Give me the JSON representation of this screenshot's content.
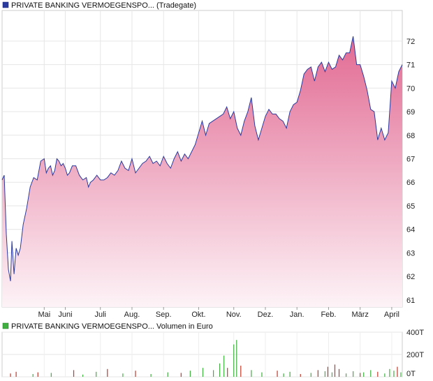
{
  "chart_data": [
    {
      "type": "area",
      "legend": "PRIVATE BANKING VERMOEGENSPO... (Tradegate)",
      "series_color": "#2b3a9e",
      "fill_top_color": "#e26a93",
      "fill_bottom_color": "#fdf3f7",
      "ylim": [
        60.7,
        73.3
      ],
      "yticks": [
        "61",
        "62",
        "63",
        "64",
        "65",
        "66",
        "67",
        "68",
        "69",
        "70",
        "71",
        "72"
      ],
      "ytick_values": [
        61,
        62,
        63,
        64,
        65,
        66,
        67,
        68,
        69,
        70,
        71,
        72
      ],
      "xlim": [
        0,
        57
      ],
      "xticks": [
        "Mai",
        "Juni",
        "Juli",
        "Aug.",
        "Sep.",
        "Okt.",
        "Nov.",
        "Dez.",
        "Jan.",
        "Feb.",
        "März",
        "April"
      ],
      "xtick_positions": [
        6,
        9,
        14,
        18.5,
        23,
        28,
        33,
        37.5,
        42,
        46.5,
        51,
        55.5
      ],
      "grid": true,
      "x": [
        0,
        0.3,
        0.6,
        0.9,
        1.2,
        1.4,
        1.7,
        2,
        2.3,
        2.6,
        3,
        3.5,
        4,
        4.5,
        5,
        5.5,
        6,
        6.3,
        6.6,
        6.9,
        7.2,
        7.5,
        7.8,
        8.1,
        8.4,
        8.7,
        9,
        9.3,
        9.6,
        10,
        10.5,
        11,
        11.5,
        12,
        12.3,
        12.6,
        13,
        13.5,
        14,
        14.5,
        15,
        15.5,
        16,
        16.5,
        17,
        17.5,
        18,
        18.5,
        19,
        19.5,
        20,
        20.5,
        21,
        21.5,
        22,
        22.5,
        23,
        23.5,
        24,
        24.5,
        25,
        25.5,
        26,
        26.5,
        27,
        27.5,
        28,
        28.5,
        29,
        29.5,
        30,
        30.5,
        31,
        31.5,
        32,
        32.5,
        33,
        33.5,
        34,
        34.5,
        35,
        35.5,
        36,
        36.5,
        37,
        37.5,
        38,
        38.5,
        39,
        39.5,
        40,
        40.5,
        41,
        41.5,
        42,
        42.5,
        43,
        43.5,
        44,
        44.5,
        45,
        45.5,
        46,
        46.5,
        47,
        47.5,
        48,
        48.5,
        49,
        49.5,
        50,
        50.5,
        51,
        51.5,
        52,
        52.5,
        53,
        53.5,
        54,
        54.5,
        55,
        55.5,
        56,
        56.5,
        57
      ],
      "values": [
        66.1,
        66.3,
        63.8,
        62.3,
        61.8,
        63.5,
        62.1,
        63.2,
        62.9,
        63.2,
        64.2,
        64.9,
        65.8,
        66.2,
        66.1,
        66.9,
        67.0,
        66.4,
        66.6,
        66.7,
        66.3,
        66.5,
        67.0,
        66.9,
        66.7,
        66.8,
        66.6,
        66.3,
        66.4,
        66.7,
        66.7,
        66.3,
        66.1,
        66.2,
        65.8,
        66.0,
        66.1,
        66.3,
        66.1,
        66.1,
        66.2,
        66.4,
        66.3,
        66.5,
        66.9,
        66.6,
        66.5,
        67.0,
        66.4,
        66.6,
        66.8,
        66.9,
        67.1,
        66.8,
        66.9,
        66.7,
        67.1,
        66.8,
        66.6,
        67.0,
        67.3,
        66.9,
        67.2,
        67.0,
        67.3,
        67.6,
        68.1,
        68.6,
        68.0,
        68.5,
        68.6,
        68.7,
        68.8,
        68.9,
        69.2,
        68.7,
        69.0,
        68.3,
        68.0,
        68.6,
        69.0,
        69.6,
        68.4,
        67.8,
        68.3,
        68.8,
        69.1,
        68.9,
        68.9,
        68.7,
        68.6,
        68.3,
        69.0,
        69.3,
        69.4,
        69.9,
        70.6,
        70.8,
        70.9,
        70.3,
        70.9,
        71.1,
        70.7,
        71.1,
        70.8,
        70.9,
        71.4,
        71.2,
        71.5,
        71.5,
        72.2,
        71.0,
        71.0,
        70.5,
        69.9,
        69.1,
        69.0,
        67.8,
        68.3,
        67.8,
        68.1,
        70.3,
        70.0,
        70.7,
        71.0
      ]
    },
    {
      "type": "bar",
      "legend": "PRIVATE BANKING VERMOEGENSPO... Volumen in Euro",
      "ylim": [
        0,
        400
      ],
      "yticks": [
        "0T",
        "200T",
        "400T"
      ],
      "ytick_values": [
        0,
        200,
        400
      ],
      "xlim": [
        0,
        57
      ],
      "grid": true,
      "colors": {
        "up": "#3fb03f",
        "down": "#c0392b"
      },
      "x": [
        1.2,
        2.0,
        4.4,
        5.1,
        7.0,
        10.2,
        11.5,
        13.4,
        15.0,
        17.2,
        19.0,
        21.2,
        23.6,
        25.5,
        26.8,
        28.6,
        30.1,
        31.0,
        31.6,
        32.1,
        33.0,
        33.4,
        34.0,
        35.5,
        37.0,
        39.2,
        40.1,
        41.0,
        42.5,
        44.0,
        45.0,
        46.0,
        46.4,
        47.0,
        47.4,
        48.0,
        49.0,
        50.0,
        51.0,
        51.5,
        52.5,
        53.5,
        54.5,
        55.2,
        55.8,
        56.3,
        56.8
      ],
      "values": [
        30,
        45,
        25,
        40,
        35,
        60,
        20,
        45,
        70,
        30,
        55,
        25,
        40,
        35,
        55,
        80,
        60,
        120,
        190,
        80,
        290,
        330,
        100,
        60,
        40,
        55,
        30,
        45,
        25,
        35,
        60,
        50,
        90,
        40,
        110,
        70,
        30,
        50,
        35,
        40,
        60,
        45,
        30,
        70,
        55,
        90,
        40
      ],
      "directions": [
        "down",
        "down",
        "up",
        "down",
        "up",
        "down",
        "up",
        "up",
        "down",
        "up",
        "down",
        "up",
        "up",
        "down",
        "up",
        "up",
        "up",
        "up",
        "up",
        "down",
        "up",
        "up",
        "down",
        "up",
        "up",
        "down",
        "up",
        "up",
        "down",
        "up",
        "down",
        "up",
        "down",
        "up",
        "down",
        "down",
        "up",
        "up",
        "down",
        "up",
        "up",
        "down",
        "up",
        "up",
        "up",
        "down",
        "up"
      ]
    }
  ]
}
